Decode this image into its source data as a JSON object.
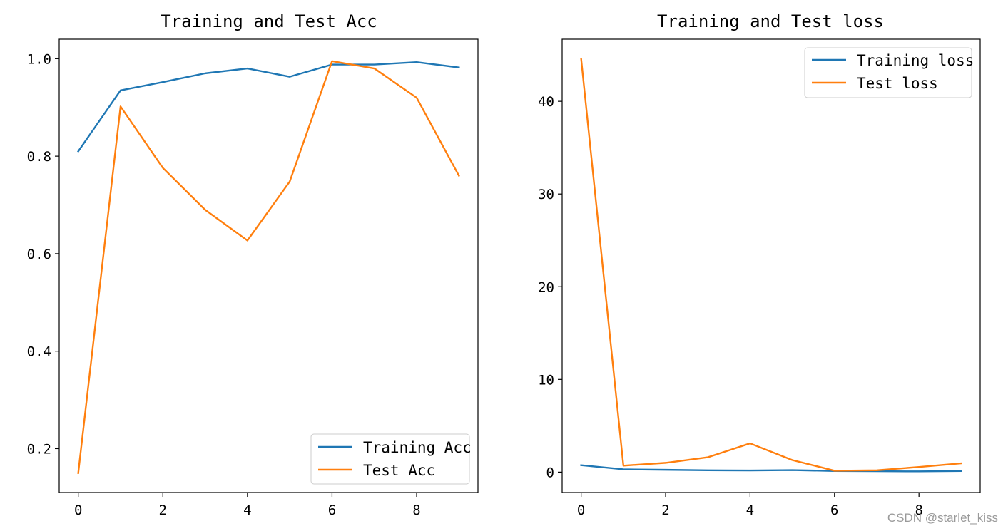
{
  "chart_data": [
    {
      "type": "line",
      "title": "Training and Test Acc",
      "xlabel": "",
      "ylabel": "",
      "x": [
        0,
        1,
        2,
        3,
        4,
        5,
        6,
        7,
        8,
        9
      ],
      "xticks": [
        0,
        2,
        4,
        6,
        8
      ],
      "yticks": [
        0.2,
        0.4,
        0.6,
        0.8,
        1.0
      ],
      "ytick_labels": [
        "0.2",
        "0.4",
        "0.6",
        "0.8",
        "1.0"
      ],
      "xlim": [
        -0.45,
        9.45
      ],
      "ylim": [
        0.11,
        1.04
      ],
      "legend_position": "lower-right",
      "series": [
        {
          "name": "Training Acc",
          "color": "#1f77b4",
          "values": [
            0.81,
            0.935,
            0.952,
            0.97,
            0.98,
            0.963,
            0.988,
            0.988,
            0.993,
            0.982
          ]
        },
        {
          "name": "Test Acc",
          "color": "#ff7f0e",
          "values": [
            0.15,
            0.902,
            0.776,
            0.69,
            0.627,
            0.748,
            0.995,
            0.98,
            0.92,
            0.76
          ]
        }
      ]
    },
    {
      "type": "line",
      "title": "Training and Test loss",
      "xlabel": "",
      "ylabel": "",
      "x": [
        0,
        1,
        2,
        3,
        4,
        5,
        6,
        7,
        8,
        9
      ],
      "xticks": [
        0,
        2,
        4,
        6,
        8
      ],
      "yticks": [
        0,
        10,
        20,
        30,
        40
      ],
      "ytick_labels": [
        "0",
        "10",
        "20",
        "30",
        "40"
      ],
      "xlim": [
        -0.45,
        9.45
      ],
      "ylim": [
        -2.2,
        46.7
      ],
      "legend_position": "upper-right",
      "series": [
        {
          "name": "Training loss",
          "color": "#1f77b4",
          "values": [
            0.75,
            0.3,
            0.25,
            0.2,
            0.18,
            0.22,
            0.12,
            0.1,
            0.08,
            0.12
          ]
        },
        {
          "name": "Test loss",
          "color": "#ff7f0e",
          "values": [
            44.6,
            0.7,
            1.0,
            1.6,
            3.1,
            1.3,
            0.15,
            0.2,
            0.55,
            0.95
          ]
        }
      ]
    }
  ],
  "watermark": "CSDN @starlet_kiss"
}
